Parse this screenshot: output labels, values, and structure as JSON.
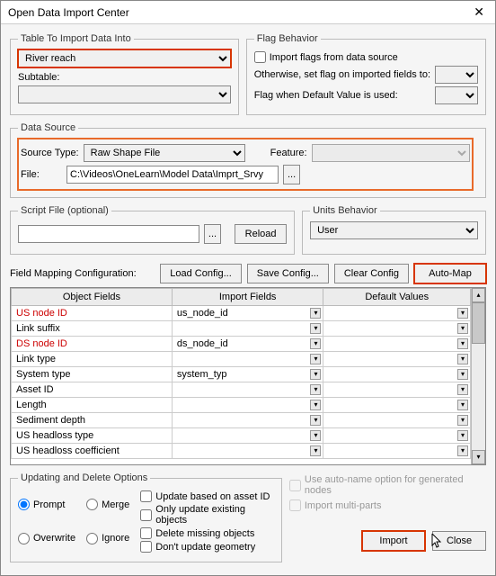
{
  "window": {
    "title": "Open Data Import Center"
  },
  "table_import": {
    "legend": "Table To Import Data Into",
    "table_value": "River reach",
    "subtable_label": "Subtable:"
  },
  "flag": {
    "legend": "Flag Behavior",
    "import_flags_label": "Import flags from data source",
    "otherwise_label": "Otherwise, set flag on imported fields to:",
    "default_label": "Flag when Default Value is used:"
  },
  "data_source": {
    "legend": "Data Source",
    "source_type_label": "Source Type:",
    "source_type_value": "Raw Shape File",
    "feature_label": "Feature:",
    "file_label": "File:",
    "file_value": "C:\\Videos\\OneLearn\\Model Data\\Imprt_Srvy",
    "browse": "..."
  },
  "script": {
    "legend": "Script File (optional)",
    "browse": "...",
    "reload": "Reload"
  },
  "units": {
    "legend": "Units Behavior",
    "value": "User"
  },
  "mapping": {
    "label": "Field Mapping Configuration:",
    "load": "Load Config...",
    "save": "Save Config...",
    "clear": "Clear Config",
    "automap": "Auto-Map",
    "headers": [
      "Object Fields",
      "Import Fields",
      "Default Values"
    ],
    "rows": [
      {
        "obj": "US node ID",
        "imp": "us_node_id",
        "red": true
      },
      {
        "obj": "Link suffix",
        "imp": ""
      },
      {
        "obj": "DS node ID",
        "imp": "ds_node_id",
        "red": true
      },
      {
        "obj": "Link type",
        "imp": ""
      },
      {
        "obj": "System type",
        "imp": "system_typ"
      },
      {
        "obj": "Asset ID",
        "imp": ""
      },
      {
        "obj": "Length",
        "imp": ""
      },
      {
        "obj": "Sediment depth",
        "imp": ""
      },
      {
        "obj": "US headloss type",
        "imp": ""
      },
      {
        "obj": "US headloss coefficient",
        "imp": ""
      }
    ]
  },
  "update": {
    "legend": "Updating and Delete Options",
    "radios": [
      "Prompt",
      "Merge",
      "Overwrite",
      "Ignore"
    ],
    "selected": "Prompt",
    "checks": [
      "Update based on asset ID",
      "Only update existing objects",
      "Delete missing objects",
      "Don't update geometry"
    ]
  },
  "right_checks": {
    "auto_name": "Use auto-name option for generated nodes",
    "multi": "Import multi-parts"
  },
  "buttons": {
    "import": "Import",
    "close": "Close"
  },
  "colors": {
    "hl_red": "#d73502",
    "hl_orange": "#e86a2a"
  }
}
